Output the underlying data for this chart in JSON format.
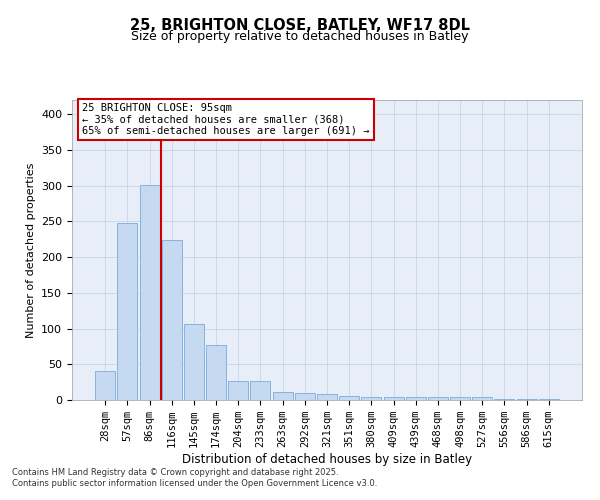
{
  "title_line1": "25, BRIGHTON CLOSE, BATLEY, WF17 8DL",
  "title_line2": "Size of property relative to detached houses in Batley",
  "xlabel": "Distribution of detached houses by size in Batley",
  "ylabel": "Number of detached properties",
  "categories": [
    "28sqm",
    "57sqm",
    "86sqm",
    "116sqm",
    "145sqm",
    "174sqm",
    "204sqm",
    "233sqm",
    "263sqm",
    "292sqm",
    "321sqm",
    "351sqm",
    "380sqm",
    "409sqm",
    "439sqm",
    "468sqm",
    "498sqm",
    "527sqm",
    "556sqm",
    "586sqm",
    "615sqm"
  ],
  "values": [
    40,
    248,
    301,
    224,
    106,
    77,
    27,
    27,
    11,
    10,
    9,
    5,
    4,
    4,
    4,
    4,
    4,
    4,
    1,
    1,
    2
  ],
  "bar_color": "#c5d9f1",
  "bar_edge_color": "#7aabdc",
  "grid_color": "#c8d4e8",
  "vline_x": 2.5,
  "vline_color": "#cc0000",
  "annotation_text": "25 BRIGHTON CLOSE: 95sqm\n← 35% of detached houses are smaller (368)\n65% of semi-detached houses are larger (691) →",
  "annotation_box_edgecolor": "#cc0000",
  "footnote": "Contains HM Land Registry data © Crown copyright and database right 2025.\nContains public sector information licensed under the Open Government Licence v3.0.",
  "bg_color": "#e8eef8",
  "ylim": [
    0,
    420
  ],
  "yticks": [
    0,
    50,
    100,
    150,
    200,
    250,
    300,
    350,
    400
  ],
  "title1_fontsize": 10.5,
  "title2_fontsize": 9,
  "ylabel_fontsize": 8,
  "xlabel_fontsize": 8.5,
  "tick_fontsize": 7.5,
  "footnote_fontsize": 6,
  "annot_fontsize": 7.5
}
